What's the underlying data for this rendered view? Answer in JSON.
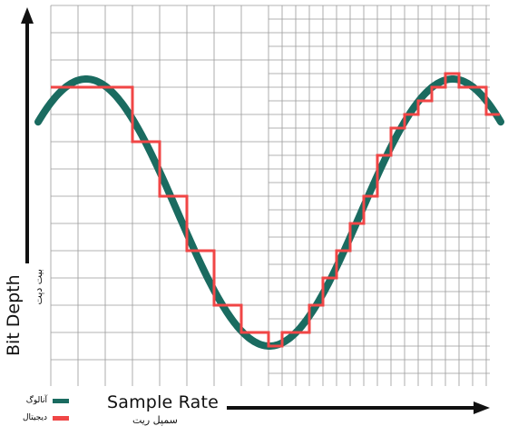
{
  "diagram": {
    "x_label": "Sample Rate",
    "x_label_fa": "سمپل ریت",
    "y_label": "Bit Depth",
    "y_label_fa": "بیت دپت",
    "legend": [
      {
        "label": "آنالوگ",
        "color": "#1a6b60"
      },
      {
        "label": "دیجیتال",
        "color": "#f04646"
      }
    ]
  },
  "colors": {
    "analog": "#1a6b60",
    "digital": "#f04646",
    "grid": "#9a9a9a",
    "axis": "#111111"
  }
}
